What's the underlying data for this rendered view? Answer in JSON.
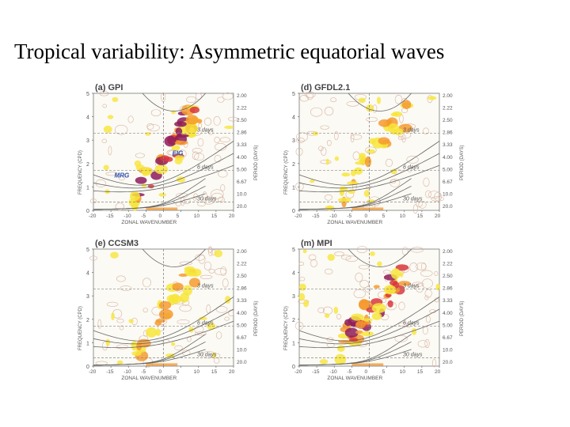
{
  "slide": {
    "title": "Tropical variability: Asymmetric equatorial waves"
  },
  "colors": {
    "low": "#f7e53b",
    "mid": "#f59a2f",
    "high": "#d9363c",
    "peak": "#8d1b5a",
    "contour": "#d9b3a3",
    "grid": "#888888"
  },
  "panels": [
    {
      "label": "(a) GPI",
      "annotations": [
        "MRG",
        "EIG"
      ],
      "annotation_color": "#2a4fb3"
    },
    {
      "label": "(d) GFDL2.1",
      "annotations": []
    },
    {
      "label": "(e) CCSM3",
      "annotations": []
    },
    {
      "label": "(m) MPI",
      "annotations": []
    }
  ],
  "axes": {
    "ylabel": "FREQUENCY (CPD)",
    "xlabel": "ZONAL WAVENUMBER",
    "right_label": "PERIOD (DAYS)",
    "y_ticks": [
      "5",
      "4",
      "3",
      "2",
      "1",
      "0"
    ],
    "x_ticks": [
      "-20",
      "-15",
      "-10",
      "-5",
      "0",
      "5",
      "10",
      "15",
      "20"
    ],
    "period_ticks": [
      "2.00",
      "2.22",
      "2.50",
      "2.86",
      "3.33",
      "4.00",
      "5.00",
      "6.67",
      "10.0",
      "20.0"
    ],
    "day_labels": [
      "3 days",
      "6 days",
      "30 days"
    ]
  }
}
